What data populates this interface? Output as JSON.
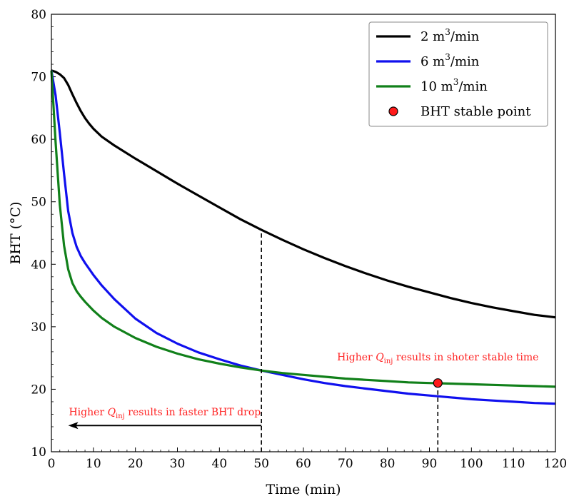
{
  "chart_data": {
    "type": "line",
    "title": "",
    "xlabel": "Time (min)",
    "ylabel": "BHT  (°C)",
    "xlim": [
      0,
      120
    ],
    "ylim": [
      10,
      80
    ],
    "xticks": [
      0,
      10,
      20,
      30,
      40,
      50,
      60,
      70,
      80,
      90,
      100,
      110,
      120
    ],
    "yticks": [
      10,
      20,
      30,
      40,
      50,
      60,
      70,
      80
    ],
    "grid": false,
    "legend_position": "top-right",
    "series": [
      {
        "name": "2 m³/min",
        "color": "#000000",
        "points": [
          [
            0,
            71
          ],
          [
            1,
            70.8
          ],
          [
            2,
            70.4
          ],
          [
            3,
            69.8
          ],
          [
            4,
            68.7
          ],
          [
            5,
            67.2
          ],
          [
            6,
            65.8
          ],
          [
            7,
            64.5
          ],
          [
            8,
            63.4
          ],
          [
            9,
            62.5
          ],
          [
            10,
            61.7
          ],
          [
            12,
            60.4
          ],
          [
            15,
            59
          ],
          [
            20,
            56.9
          ],
          [
            25,
            54.9
          ],
          [
            30,
            52.9
          ],
          [
            35,
            51
          ],
          [
            40,
            49.1
          ],
          [
            45,
            47.2
          ],
          [
            50,
            45.5
          ],
          [
            55,
            43.9
          ],
          [
            60,
            42.4
          ],
          [
            65,
            41
          ],
          [
            70,
            39.7
          ],
          [
            75,
            38.5
          ],
          [
            80,
            37.4
          ],
          [
            85,
            36.4
          ],
          [
            90,
            35.5
          ],
          [
            95,
            34.6
          ],
          [
            100,
            33.8
          ],
          [
            105,
            33.1
          ],
          [
            110,
            32.5
          ],
          [
            115,
            31.9
          ],
          [
            120,
            31.5
          ]
        ]
      },
      {
        "name": "6 m³/min",
        "color": "#1010ee",
        "points": [
          [
            0,
            71
          ],
          [
            1,
            67
          ],
          [
            2,
            61
          ],
          [
            3,
            54.5
          ],
          [
            4,
            48.5
          ],
          [
            5,
            45
          ],
          [
            6,
            42.8
          ],
          [
            7,
            41.3
          ],
          [
            8,
            40.2
          ],
          [
            10,
            38.3
          ],
          [
            12,
            36.6
          ],
          [
            15,
            34.4
          ],
          [
            20,
            31.3
          ],
          [
            25,
            29
          ],
          [
            30,
            27.3
          ],
          [
            35,
            25.9
          ],
          [
            40,
            24.8
          ],
          [
            45,
            23.8
          ],
          [
            50,
            23
          ],
          [
            55,
            22.3
          ],
          [
            60,
            21.6
          ],
          [
            65,
            21
          ],
          [
            70,
            20.5
          ],
          [
            75,
            20.1
          ],
          [
            80,
            19.7
          ],
          [
            85,
            19.3
          ],
          [
            90,
            19
          ],
          [
            95,
            18.7
          ],
          [
            100,
            18.4
          ],
          [
            105,
            18.2
          ],
          [
            110,
            18
          ],
          [
            115,
            17.8
          ],
          [
            120,
            17.7
          ]
        ]
      },
      {
        "name": "10 m³/min",
        "color": "#11801a",
        "points": [
          [
            0,
            71
          ],
          [
            1,
            59.5
          ],
          [
            2,
            49.5
          ],
          [
            3,
            43
          ],
          [
            4,
            39.2
          ],
          [
            5,
            37
          ],
          [
            6,
            35.7
          ],
          [
            7,
            34.8
          ],
          [
            8,
            34
          ],
          [
            10,
            32.6
          ],
          [
            12,
            31.4
          ],
          [
            15,
            30
          ],
          [
            20,
            28.2
          ],
          [
            25,
            26.8
          ],
          [
            30,
            25.7
          ],
          [
            35,
            24.8
          ],
          [
            40,
            24.1
          ],
          [
            45,
            23.5
          ],
          [
            50,
            23
          ],
          [
            55,
            22.6
          ],
          [
            60,
            22.3
          ],
          [
            65,
            22
          ],
          [
            70,
            21.7
          ],
          [
            75,
            21.5
          ],
          [
            80,
            21.3
          ],
          [
            85,
            21.1
          ],
          [
            90,
            21
          ],
          [
            95,
            20.9
          ],
          [
            100,
            20.8
          ],
          [
            105,
            20.7
          ],
          [
            110,
            20.6
          ],
          [
            115,
            20.5
          ],
          [
            120,
            20.4
          ]
        ]
      }
    ],
    "stable_point": {
      "name": "BHT stable point",
      "x": 92,
      "y": 21,
      "color": "#ff1a1a"
    },
    "vlines": [
      {
        "x": 50,
        "y_from": 10,
        "y_to": 45.5,
        "style": "dashed"
      },
      {
        "x": 92,
        "y_from": 10,
        "y_to": 21,
        "style": "dashed"
      }
    ],
    "arrow": {
      "x_from": 50,
      "x_to": 4,
      "y": 14.2,
      "color": "#000000"
    },
    "annotations": [
      {
        "text": "Higher Q",
        "sub": "inj",
        "rest": " results in shoter stable time",
        "x": 92,
        "y": 24.6,
        "color": "#ff2222"
      },
      {
        "text": "Higher Q",
        "sub": "inj",
        "rest": " results in faster BHT drop",
        "x": 27,
        "y": 15.8,
        "color": "#ff2222"
      }
    ]
  }
}
